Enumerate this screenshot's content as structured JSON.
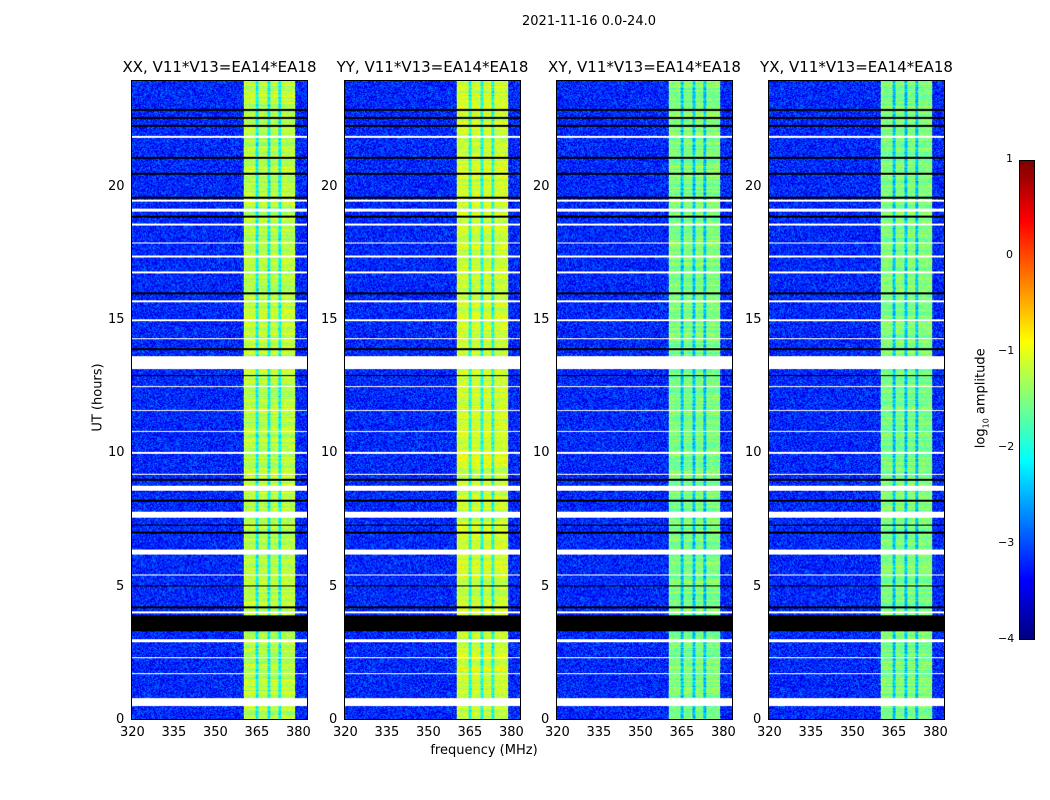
{
  "chart_data": {
    "type": "heatmap",
    "title": "2021-11-16 0.0-24.0",
    "xlabel": "frequency (MHz)",
    "ylabel": "UT (hours)",
    "xlim": [
      320,
      384
    ],
    "ylim": [
      0,
      24
    ],
    "xticks": [
      320,
      335,
      350,
      365,
      380
    ],
    "yticks": [
      0,
      5,
      10,
      15,
      20
    ],
    "panels": [
      {
        "title": "XX, V11*V13=EA14*EA18",
        "band_level": -1.2
      },
      {
        "title": "YY, V11*V13=EA14*EA18",
        "band_level": -1.1
      },
      {
        "title": "XY, V11*V13=EA14*EA18",
        "band_level": -1.5
      },
      {
        "title": "YX, V11*V13=EA14*EA18",
        "band_level": -1.5
      }
    ],
    "bright_band_mhz": [
      360.5,
      379.5
    ],
    "band_gaps_mhz": [
      365.5,
      370,
      374
    ],
    "background_level": -3.2,
    "flagged_white_hours": [
      [
        0.5,
        0.8
      ],
      [
        1.7,
        1.75
      ],
      [
        2.3,
        2.35
      ],
      [
        2.9,
        3.0
      ],
      [
        4.0,
        4.05
      ],
      [
        5.4,
        5.45
      ],
      [
        6.2,
        6.4
      ],
      [
        7.6,
        7.8
      ],
      [
        8.6,
        8.8
      ],
      [
        9.2,
        9.25
      ],
      [
        10.0,
        10.05
      ],
      [
        10.8,
        10.85
      ],
      [
        11.6,
        11.65
      ],
      [
        12.5,
        12.55
      ],
      [
        13.2,
        13.65
      ],
      [
        14.3,
        14.35
      ],
      [
        15.0,
        15.05
      ],
      [
        15.7,
        15.75
      ],
      [
        16.8,
        16.85
      ],
      [
        17.4,
        17.45
      ],
      [
        17.9,
        17.95
      ],
      [
        18.6,
        18.65
      ],
      [
        19.1,
        19.2
      ],
      [
        19.5,
        19.55
      ],
      [
        21.9,
        21.95
      ]
    ],
    "flagged_black_hours": [
      [
        3.3,
        3.9
      ],
      [
        4.2,
        4.25
      ],
      [
        5.0,
        5.05
      ],
      [
        7.0,
        7.05
      ],
      [
        7.3,
        7.35
      ],
      [
        8.2,
        8.25
      ],
      [
        9.0,
        9.05
      ],
      [
        12.9,
        12.95
      ],
      [
        13.9,
        13.95
      ],
      [
        16.0,
        16.05
      ],
      [
        18.9,
        18.95
      ],
      [
        19.6,
        19.65
      ],
      [
        20.5,
        20.55
      ],
      [
        21.1,
        21.15
      ],
      [
        22.3,
        22.35
      ],
      [
        22.6,
        22.65
      ],
      [
        22.9,
        22.95
      ]
    ],
    "colorbar": {
      "label": "log",
      "label_sub": "10",
      "label_rest": " amplitude",
      "range": [
        -4,
        1
      ],
      "ticks": [
        "1",
        "0",
        "−1",
        "−2",
        "−3",
        "−4"
      ],
      "colormap": "jet"
    }
  }
}
